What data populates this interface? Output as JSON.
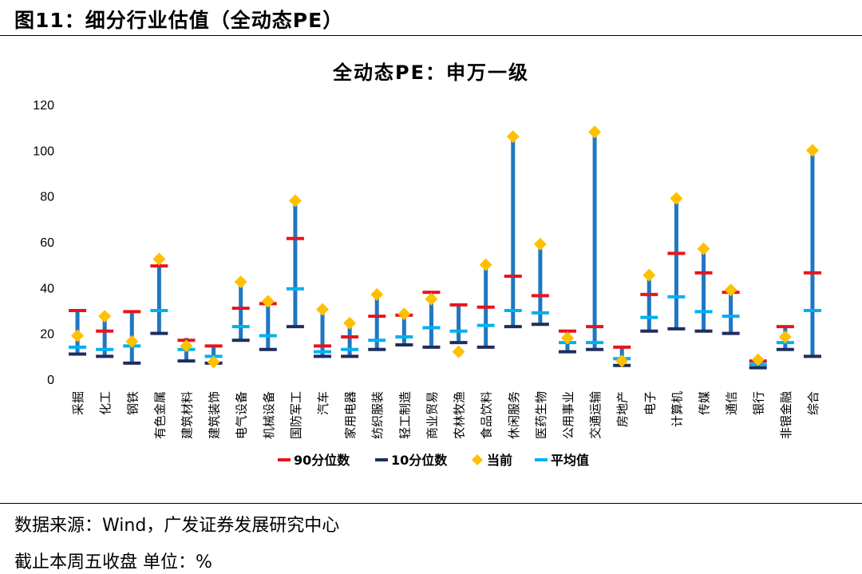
{
  "figure": {
    "title": "图11：细分行业估值（全动态PE）",
    "source": "数据来源：Wind，广发证券发展研究中心",
    "note": "截止本周五收盘 单位：%"
  },
  "colors": {
    "p90": "#e8141c",
    "p10": "#1f2d5e",
    "current": "#ffc000",
    "mean": "#00b0f0",
    "range": "#1f77c0"
  },
  "chart_data": {
    "type": "range",
    "title": "全动态PE：申万一级",
    "ylim": [
      0,
      120
    ],
    "yticks": [
      "0",
      "20",
      "40",
      "60",
      "80",
      "100",
      "120"
    ],
    "legend_position": "bottom",
    "categories": [
      "采掘",
      "化工",
      "钢铁",
      "有色金属",
      "建筑材料",
      "建筑装饰",
      "电气设备",
      "机械设备",
      "国防军工",
      "汽车",
      "家用电器",
      "纺织服装",
      "轻工制造",
      "商业贸易",
      "农林牧渔",
      "食品饮料",
      "休闲服务",
      "医药生物",
      "公用事业",
      "交通运输",
      "房地产",
      "电子",
      "计算机",
      "传媒",
      "通信",
      "银行",
      "非银金融",
      "综合"
    ],
    "range_low": [
      11,
      10,
      7,
      20,
      8,
      7,
      17,
      13,
      23,
      10,
      10,
      13,
      15,
      14,
      16,
      14,
      23,
      24,
      12,
      13,
      6,
      21,
      22,
      21,
      20,
      5,
      13,
      10
    ],
    "range_high": [
      30,
      27,
      30,
      52,
      18,
      15,
      42,
      34,
      78,
      30,
      25,
      37,
      29,
      38,
      32,
      50,
      106,
      59,
      21,
      108,
      14,
      45,
      79,
      57,
      39,
      8,
      23,
      100
    ],
    "series": [
      {
        "name": "90分位数",
        "values": [
          30,
          21,
          29.5,
          49.5,
          17,
          14.5,
          31,
          33,
          61.5,
          14.5,
          18.5,
          27.5,
          28,
          38,
          32.5,
          31.5,
          45,
          36.5,
          21,
          23,
          14,
          37,
          55,
          46.5,
          38,
          8,
          23,
          46.5
        ]
      },
      {
        "name": "10分位数",
        "values": [
          11,
          10,
          7,
          20,
          8,
          7,
          17,
          13,
          23,
          10,
          10,
          13,
          15,
          14,
          16,
          14,
          23,
          24,
          12,
          13,
          6,
          21,
          22,
          21,
          20,
          5,
          13,
          10
        ]
      },
      {
        "name": "当前",
        "values": [
          19,
          27.5,
          16.5,
          52.5,
          14.5,
          7.5,
          42.5,
          34,
          78,
          30.5,
          24.5,
          37,
          28.5,
          35,
          12,
          50,
          106,
          59,
          18,
          108,
          8,
          45.5,
          79,
          57,
          39,
          8.5,
          18.5,
          100
        ]
      },
      {
        "name": "平均值",
        "values": [
          14,
          13,
          14.5,
          30,
          13,
          10,
          23,
          19,
          39.5,
          12,
          13,
          17,
          18.5,
          22.5,
          21,
          23.5,
          30,
          29,
          16,
          16,
          9,
          27,
          36,
          29.5,
          27.5,
          6.5,
          16,
          30
        ]
      }
    ]
  }
}
